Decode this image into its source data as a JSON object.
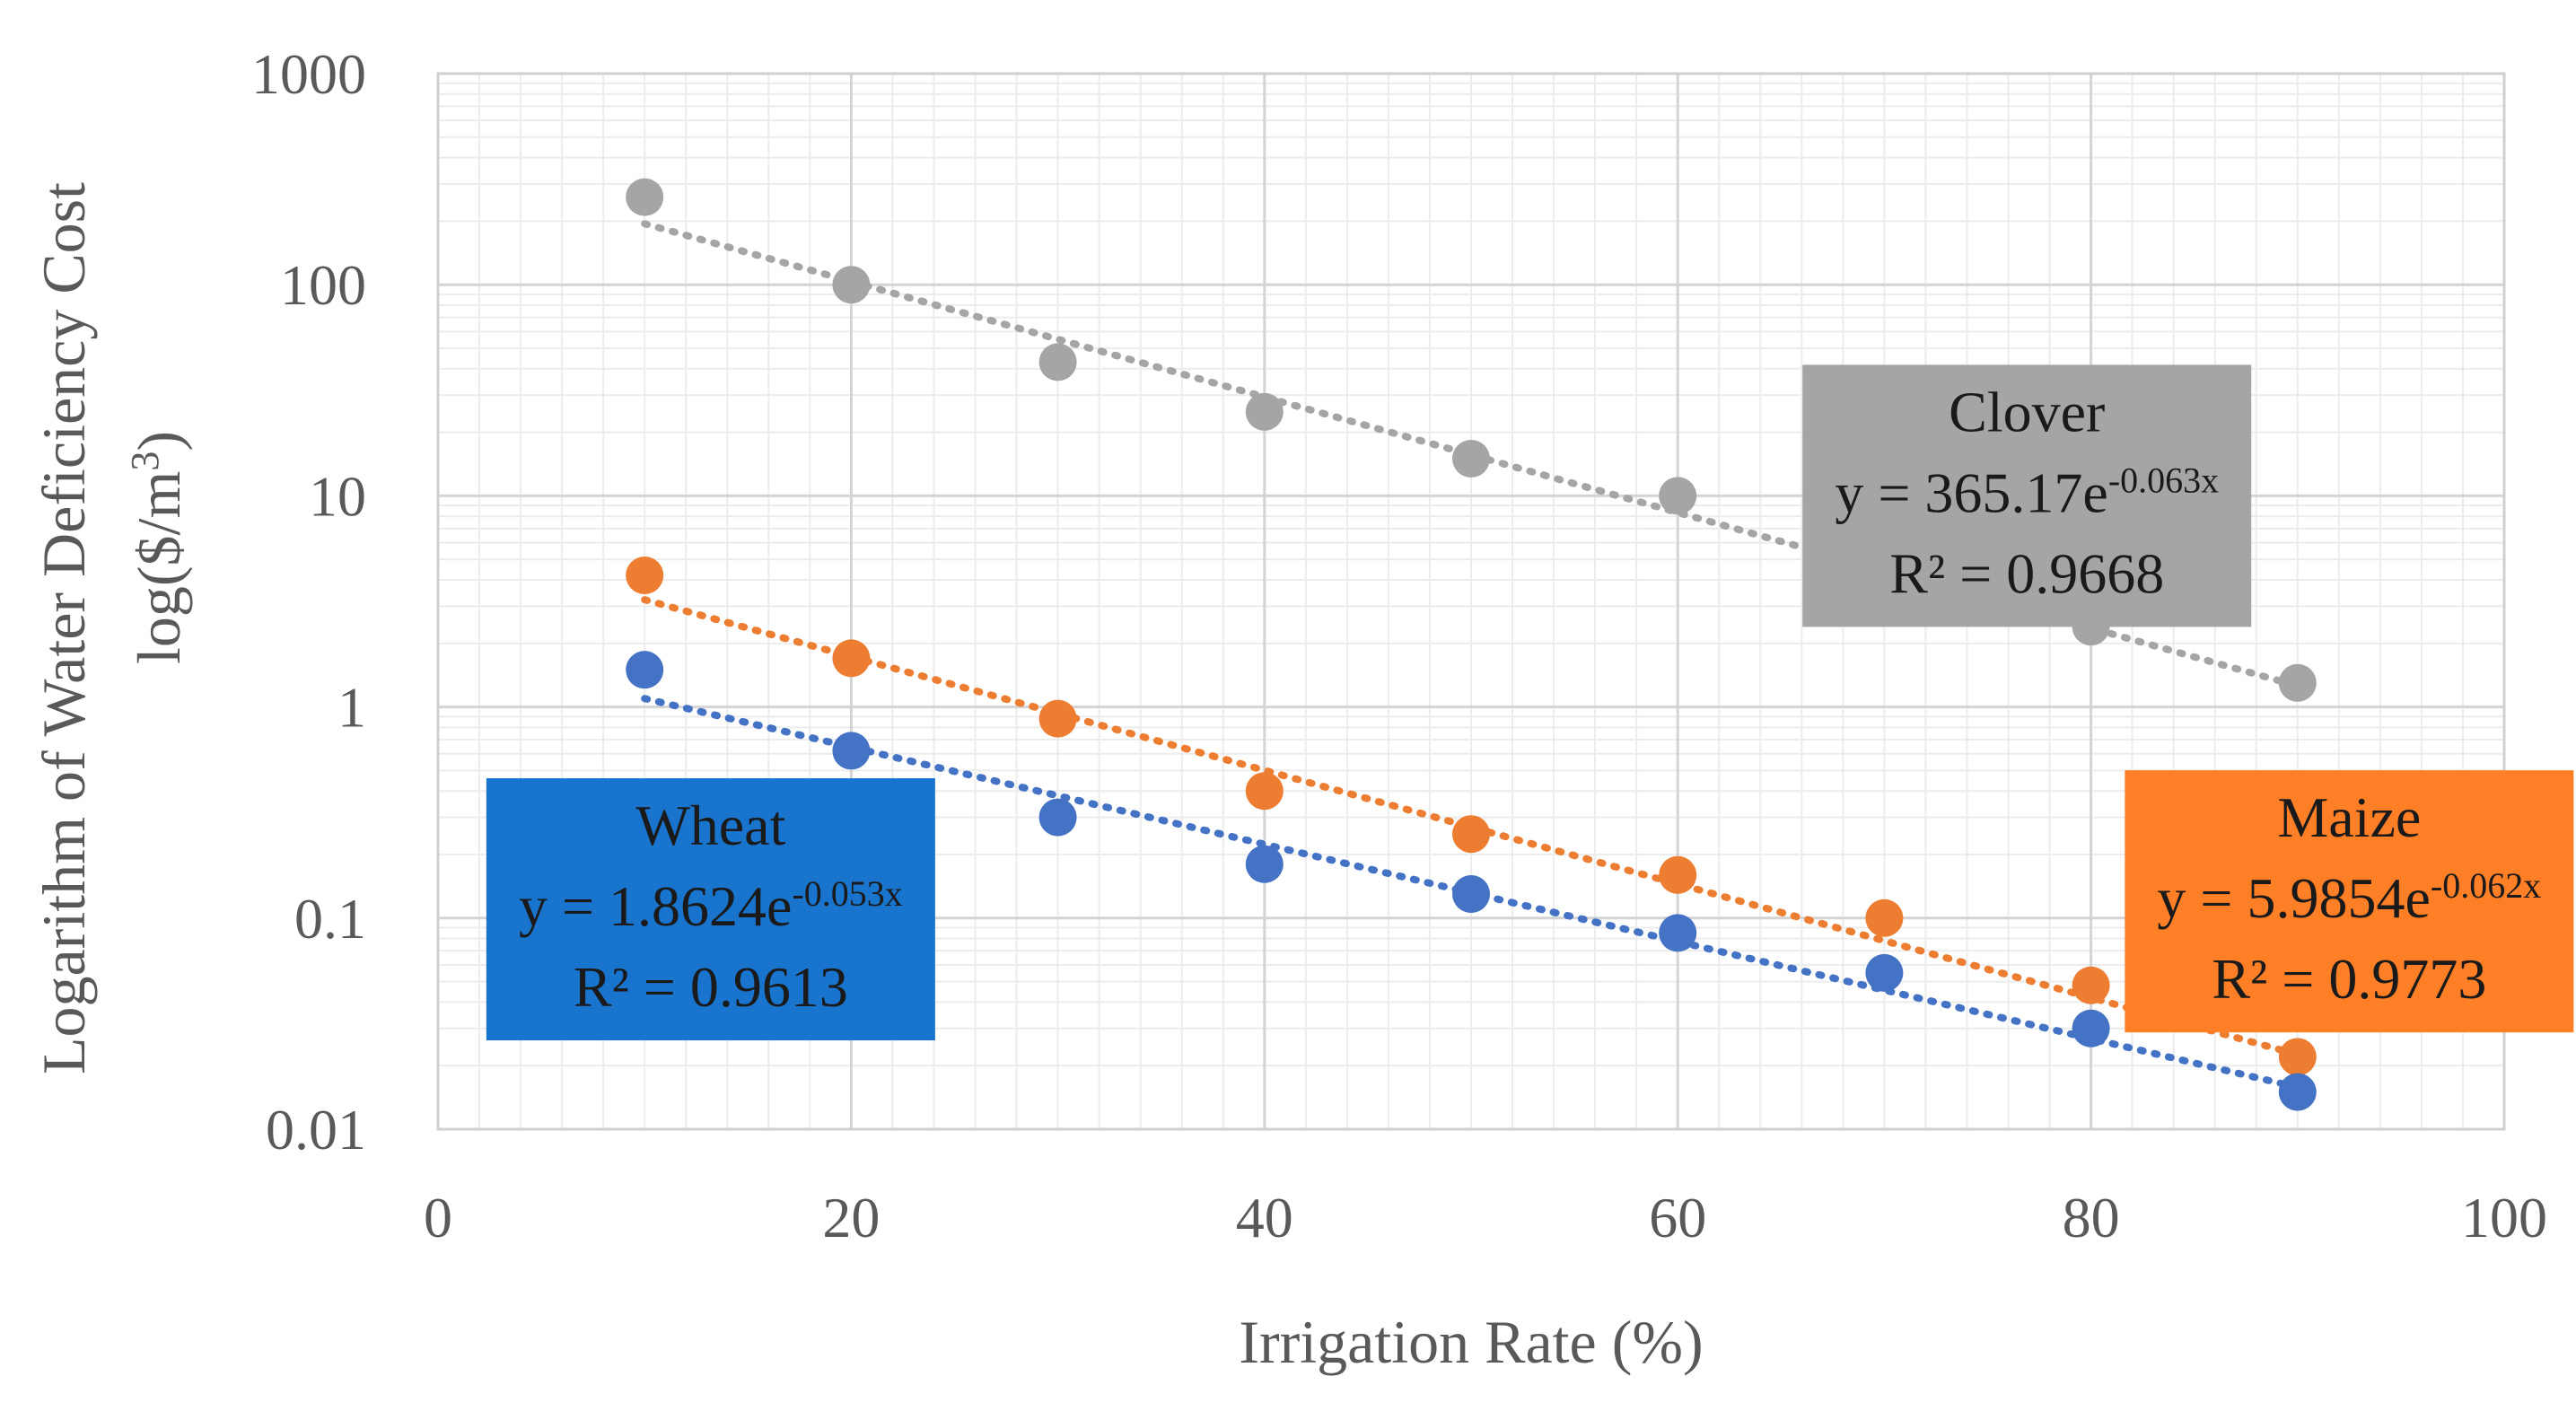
{
  "chart_data": {
    "type": "scatter",
    "xlabel": "Irrigation Rate (%)",
    "ylabel_line1": "Logarithm of Water Deficiency Cost",
    "ylabel_line2_prefix": "log($/m",
    "ylabel_line2_sup": "3",
    "ylabel_line2_suffix": ")",
    "xlim": [
      0,
      100
    ],
    "ylim": [
      0.01,
      1000
    ],
    "yscale": "log",
    "x_ticks": [
      "0",
      "20",
      "40",
      "60",
      "80",
      "100"
    ],
    "x_tick_values": [
      0,
      20,
      40,
      60,
      80,
      100
    ],
    "y_ticks": [
      "0.01",
      "0.1",
      "1",
      "10",
      "100",
      "1000"
    ],
    "y_tick_values": [
      0.01,
      0.1,
      1,
      10,
      100,
      1000
    ],
    "grid": true,
    "x": [
      10,
      20,
      30,
      40,
      50,
      60,
      70,
      80,
      90
    ],
    "series": [
      {
        "name": "Clover",
        "color": "#A5A5A5",
        "values": [
          260,
          100,
          43,
          25,
          15,
          10,
          5.4,
          2.4,
          1.3
        ],
        "trend": {
          "a": 365.17,
          "b": -0.063
        },
        "equation_prefix": "y = 365.17e",
        "equation_exp": "-0.063x",
        "r2": "R² = 0.9668",
        "label_anchor": {
          "x": 76.9,
          "y": 10
        }
      },
      {
        "name": "Maize",
        "color": "#ED7D31",
        "values": [
          4.2,
          1.7,
          0.88,
          0.4,
          0.25,
          0.16,
          0.1,
          0.048,
          0.022
        ],
        "trend": {
          "a": 5.9854,
          "b": -0.062
        },
        "equation_prefix": "y = 5.9854e",
        "equation_exp": "-0.062x",
        "r2": "R² = 0.9773",
        "label_anchor": {
          "x": 92.5,
          "y": 0.12
        }
      },
      {
        "name": "Wheat",
        "color": "#4472C4",
        "values": [
          1.5,
          0.62,
          0.3,
          0.18,
          0.13,
          0.085,
          0.055,
          0.03,
          0.015
        ],
        "trend": {
          "a": 1.8624,
          "b": -0.053
        },
        "equation_prefix": "y = 1.8624e",
        "equation_exp": "-0.053x",
        "r2": "R² = 0.9613",
        "label_anchor": {
          "x": 13.2,
          "y": 0.11
        }
      }
    ],
    "label_box_colors": {
      "Clover": "#A5A5A5",
      "Maize": "#FF7F27",
      "Wheat": "#1874CD"
    }
  }
}
